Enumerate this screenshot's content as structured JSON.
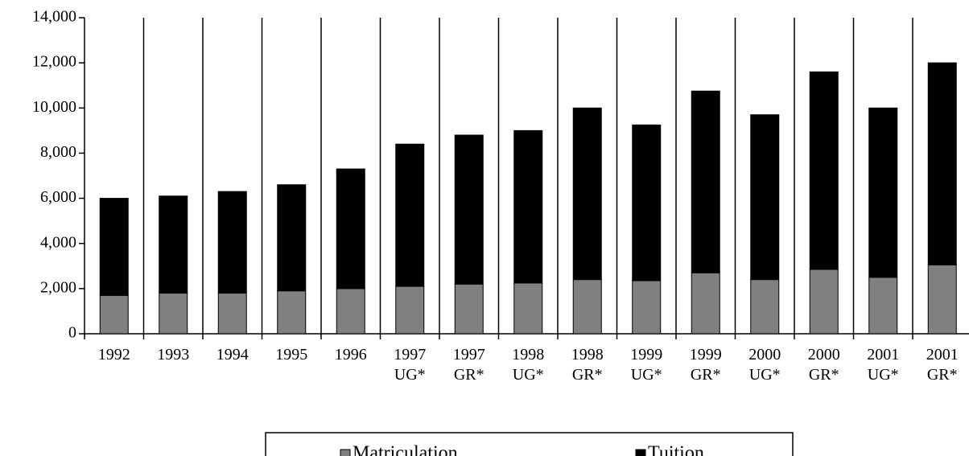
{
  "chart_data": {
    "type": "stacked_bar",
    "categories": [
      "1992",
      "1993",
      "1994",
      "1995",
      "1996",
      "1997 UG*",
      "1997 GR*",
      "1998 UG*",
      "1998 GR*",
      "1999 UG*",
      "1999 GR*",
      "2000 UG*",
      "2000 GR*",
      "2001 UG*",
      "2001 GR*"
    ],
    "series": [
      {
        "name": "Matriculation",
        "color": "#808080",
        "values": [
          1700,
          1800,
          1800,
          1900,
          2000,
          2100,
          2200,
          2250,
          2400,
          2350,
          2700,
          2400,
          2850,
          2500,
          3050
        ]
      },
      {
        "name": "Tuition",
        "color": "#000000",
        "values": [
          4300,
          4300,
          4500,
          4700,
          5300,
          6300,
          6600,
          6750,
          7600,
          6900,
          8050,
          7300,
          8750,
          7500,
          8950
        ]
      }
    ],
    "ylim": [
      0,
      14000
    ],
    "yticks": [
      0,
      {
        "value": 2000,
        "label": "2,000"
      },
      {
        "value": 4000,
        "label": "4,000"
      },
      {
        "value": 6000,
        "label": "6,000"
      },
      {
        "value": 8000,
        "label": "8,000"
      },
      {
        "value": 10000,
        "label": "10,000"
      },
      {
        "value": 12000,
        "label": "12,000"
      },
      {
        "value": 14000,
        "label": "14,000"
      }
    ],
    "grid": true,
    "legend": "bottom"
  }
}
